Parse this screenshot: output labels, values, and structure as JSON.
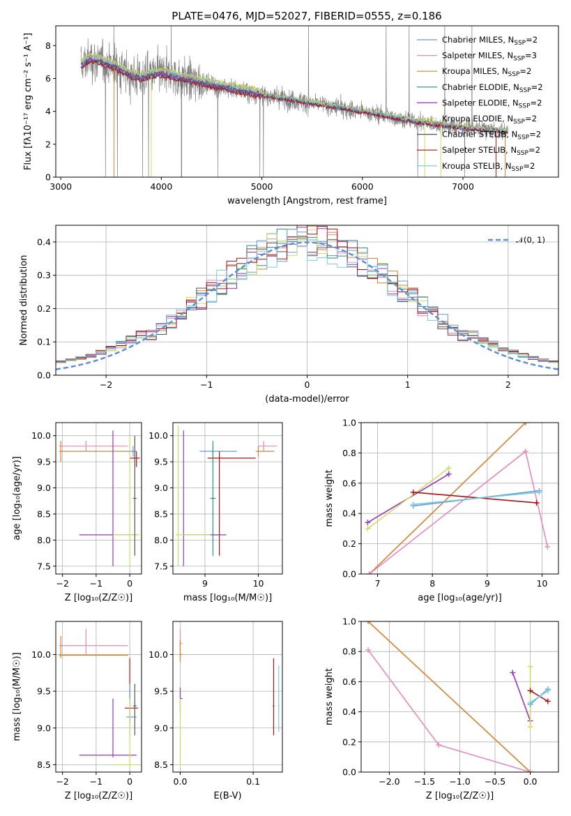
{
  "title": "PLATE=0476, MJD=52027, FIBERID=0555, z=0.186",
  "models": [
    {
      "name": "Chabrier MILES",
      "nssp": "2",
      "color": "#6699dd"
    },
    {
      "name": "Salpeter MILES",
      "nssp": "3",
      "color": "#e888bb"
    },
    {
      "name": "Kroupa MILES",
      "nssp": "2",
      "color": "#d98030"
    },
    {
      "name": "Chabrier ELODIE",
      "nssp": "2",
      "color": "#2b8a88"
    },
    {
      "name": "Salpeter ELODIE",
      "nssp": "2",
      "color": "#9933bb"
    },
    {
      "name": "Kroupa ELODIE",
      "nssp": "2",
      "color": "#c8e060"
    },
    {
      "name": "Chabrier STELIB",
      "nssp": "2",
      "color": "#555555"
    },
    {
      "name": "Salpeter STELIB",
      "nssp": "2",
      "color": "#aa1111"
    },
    {
      "name": "Kroupa STELIB",
      "nssp": "2",
      "color": "#77ccdd"
    }
  ],
  "chart_data": [
    {
      "id": "spectrum",
      "type": "line",
      "xlabel": "wavelength [Angstrom, rest frame]",
      "ylabel": "Flux [fλ10⁻¹⁷ erg cm⁻² s⁻¹ A⁻¹]",
      "xlim": [
        2950,
        7950
      ],
      "ylim": [
        0,
        9.2
      ],
      "xticks": [
        3000,
        4000,
        5000,
        6000,
        7000
      ],
      "yticks": [
        0,
        2,
        4,
        6,
        8
      ],
      "data_color": "#808080",
      "model_shape": {
        "x": [
          3200,
          3300,
          3400,
          3500,
          3600,
          3700,
          3800,
          3900,
          4000,
          4200,
          4500,
          5000,
          5500,
          6000,
          6500,
          7000,
          7400
        ],
        "y": [
          6.8,
          7.2,
          7.0,
          6.8,
          6.5,
          6.2,
          6.0,
          6.2,
          6.3,
          6.0,
          5.6,
          5.0,
          4.5,
          4.0,
          3.4,
          3.0,
          2.8
        ]
      }
    },
    {
      "id": "residuals",
      "type": "step",
      "xlabel": "(data-model)/error",
      "ylabel": "Normed distribution",
      "xlim": [
        -2.5,
        2.5
      ],
      "ylim": [
        0,
        0.45
      ],
      "xticks": [
        -2,
        -1,
        0,
        1,
        2
      ],
      "yticks": [
        0.0,
        0.1,
        0.2,
        0.3,
        0.4
      ],
      "legend": "𝒩(0, 1)",
      "gauss_color": "#5a8fd6"
    },
    {
      "id": "age_Z",
      "type": "errorbar",
      "xlabel": "Z [log₁₀(Z/Z☉)]",
      "ylabel": "age  [log₁₀(age/yr)]",
      "xlim": [
        -2.2,
        0.35
      ],
      "ylim": [
        7.35,
        10.25
      ],
      "xticks": [
        -2,
        -1,
        0
      ],
      "yticks": [
        7.5,
        8.0,
        8.5,
        9.0,
        9.5,
        10.0
      ],
      "points": [
        {
          "m": 1,
          "x": -1.3,
          "y": 9.8,
          "xe": [
            -2.1,
            -0.05
          ],
          "ye": [
            9.7,
            9.9
          ]
        },
        {
          "m": 2,
          "x": -2.05,
          "y": 9.7,
          "xe": [
            -2.1,
            0.1
          ],
          "ye": [
            9.5,
            9.9
          ]
        },
        {
          "m": 0,
          "x": 0.1,
          "y": 9.7,
          "xe": [
            -0.1,
            0.2
          ],
          "ye": [
            9.6,
            9.8
          ]
        },
        {
          "m": 7,
          "x": 0.2,
          "y": 9.57,
          "xe": [
            0.0,
            0.3
          ],
          "ye": [
            9.4,
            9.7
          ]
        },
        {
          "m": 4,
          "x": -0.5,
          "y": 8.1,
          "xe": [
            -1.5,
            0.2
          ],
          "ye": [
            7.5,
            10.1
          ]
        },
        {
          "m": 5,
          "x": 0.0,
          "y": 8.1,
          "xe": [
            -0.5,
            0.3
          ],
          "ye": [
            7.5,
            10.0
          ]
        },
        {
          "m": 6,
          "x": 0.15,
          "y": 8.8,
          "xe": [
            0.1,
            0.2
          ],
          "ye": [
            7.7,
            10.0
          ]
        }
      ]
    },
    {
      "id": "age_mass",
      "type": "errorbar",
      "xlabel": "mass [log₁₀(M/M☉)]",
      "ylabel": "",
      "xlim": [
        8.4,
        10.45
      ],
      "ylim": [
        7.35,
        10.25
      ],
      "xticks": [
        9,
        10
      ],
      "yticks": [
        7.5,
        8.0,
        8.5,
        9.0,
        9.5,
        10.0
      ],
      "points": [
        {
          "m": 1,
          "x": 10.1,
          "y": 9.8,
          "xe": [
            10.0,
            10.35
          ],
          "ye": [
            9.7,
            9.9
          ]
        },
        {
          "m": 2,
          "x": 10.0,
          "y": 9.7,
          "xe": [
            9.95,
            10.3
          ],
          "ye": [
            9.6,
            9.8
          ]
        },
        {
          "m": 0,
          "x": 9.15,
          "y": 9.7,
          "xe": [
            8.9,
            9.6
          ],
          "ye": [
            9.5,
            9.8
          ]
        },
        {
          "m": 7,
          "x": 9.27,
          "y": 9.57,
          "xe": [
            9.05,
            9.95
          ],
          "ye": [
            7.7,
            9.7
          ]
        },
        {
          "m": 4,
          "x": 8.6,
          "y": 8.1,
          "xe": [
            8.6,
            9.4
          ],
          "ye": [
            7.5,
            10.1
          ]
        },
        {
          "m": 5,
          "x": 8.5,
          "y": 8.1,
          "xe": [
            8.45,
            9.1
          ],
          "ye": [
            7.5,
            10.2
          ]
        },
        {
          "m": 3,
          "x": 9.15,
          "y": 8.8,
          "xe": [
            9.1,
            9.2
          ],
          "ye": [
            7.7,
            9.9
          ]
        }
      ]
    },
    {
      "id": "weight_age",
      "type": "line",
      "xlabel": "age  [log₁₀(age/yr)]",
      "ylabel": "mass weight",
      "xlim": [
        6.7,
        10.3
      ],
      "ylim": [
        0,
        1
      ],
      "xticks": [
        7,
        8,
        9,
        10
      ],
      "yticks": [
        0.0,
        0.2,
        0.4,
        0.6,
        0.8,
        1.0
      ],
      "series": [
        {
          "m": 2,
          "x": [
            6.85,
            9.7
          ],
          "y": [
            0.0,
            1.0
          ]
        },
        {
          "m": 1,
          "x": [
            6.85,
            9.7,
            10.1
          ],
          "y": [
            0.0,
            0.81,
            0.18
          ]
        },
        {
          "m": 4,
          "x": [
            6.82,
            8.3
          ],
          "y": [
            0.34,
            0.66
          ]
        },
        {
          "m": 5,
          "x": [
            6.82,
            8.3
          ],
          "y": [
            0.3,
            0.7
          ]
        },
        {
          "m": 7,
          "x": [
            7.65,
            9.9
          ],
          "y": [
            0.54,
            0.47
          ]
        },
        {
          "m": 0,
          "x": [
            7.65,
            9.95
          ],
          "y": [
            0.45,
            0.55
          ]
        },
        {
          "m": 8,
          "x": [
            7.65,
            9.95
          ],
          "y": [
            0.46,
            0.54
          ]
        }
      ]
    },
    {
      "id": "mass_Z",
      "type": "errorbar",
      "xlabel": "Z [log₁₀(Z/Z☉)]",
      "ylabel": "mass [log₁₀(M/M☉)]",
      "xlim": [
        -2.2,
        0.35
      ],
      "ylim": [
        8.4,
        10.45
      ],
      "xticks": [
        -2,
        -1,
        0
      ],
      "yticks": [
        8.5,
        9.0,
        9.5,
        10.0
      ],
      "points": [
        {
          "m": 1,
          "x": -1.3,
          "y": 10.12,
          "xe": [
            -2.1,
            -0.05
          ],
          "ye": [
            10.0,
            10.35
          ]
        },
        {
          "m": 2,
          "x": -2.05,
          "y": 9.99,
          "xe": [
            -2.1,
            -0.05
          ],
          "ye": [
            9.95,
            10.25
          ]
        },
        {
          "m": 7,
          "x": 0.0,
          "y": 9.27,
          "xe": [
            -0.15,
            0.25
          ],
          "ye": [
            9.05,
            9.95
          ]
        },
        {
          "m": 0,
          "x": 0.0,
          "y": 9.15,
          "xe": [
            -0.1,
            0.2
          ],
          "ye": [
            8.9,
            9.6
          ]
        },
        {
          "m": 4,
          "x": -0.5,
          "y": 8.63,
          "xe": [
            -1.5,
            0.2
          ],
          "ye": [
            8.6,
            9.4
          ]
        },
        {
          "m": 5,
          "x": 0.0,
          "y": 8.5,
          "xe": [
            -0.5,
            0.2
          ],
          "ye": [
            8.45,
            9.4
          ]
        },
        {
          "m": 6,
          "x": 0.15,
          "y": 9.3,
          "xe": [
            0.1,
            0.2
          ],
          "ye": [
            8.9,
            9.6
          ]
        }
      ]
    },
    {
      "id": "mass_EBV",
      "type": "errorbar",
      "xlabel": "E(B-V)",
      "ylabel": "",
      "xlim": [
        -0.01,
        0.14
      ],
      "ylim": [
        8.4,
        10.45
      ],
      "xticks": [
        0.0,
        0.1
      ],
      "yticks": [
        8.5,
        9.0,
        9.5,
        10.0
      ],
      "points": [
        {
          "m": 1,
          "x": 0.0,
          "y": 10.15,
          "xe": [
            0,
            0.003
          ],
          "ye": [
            9.95,
            10.35
          ]
        },
        {
          "m": 2,
          "x": 0.0,
          "y": 10.0,
          "xe": [
            0,
            0.003
          ],
          "ye": [
            9.9,
            10.2
          ]
        },
        {
          "m": 4,
          "x": 0.0,
          "y": 9.4,
          "xe": [
            0,
            0.003
          ],
          "ye": [
            9.2,
            9.55
          ]
        },
        {
          "m": 5,
          "x": 0.0,
          "y": 9.0,
          "xe": [
            0,
            0.003
          ],
          "ye": [
            8.45,
            9.4
          ]
        },
        {
          "m": 7,
          "x": 0.128,
          "y": 9.3,
          "xe": [
            0.127,
            0.129
          ],
          "ye": [
            8.9,
            9.95
          ]
        },
        {
          "m": 8,
          "x": 0.135,
          "y": 9.3,
          "xe": [
            0.134,
            0.136
          ],
          "ye": [
            8.95,
            9.85
          ]
        }
      ]
    },
    {
      "id": "weight_Z",
      "type": "line",
      "xlabel": "Z [log₁₀(Z/Z☉)]",
      "ylabel": "mass weight",
      "xlim": [
        -2.4,
        0.4
      ],
      "ylim": [
        0,
        1
      ],
      "xticks": [
        -2.0,
        -1.5,
        -1.0,
        -0.5,
        0.0
      ],
      "yticks": [
        0.0,
        0.2,
        0.4,
        0.6,
        0.8,
        1.0
      ],
      "series": [
        {
          "m": 2,
          "x": [
            -2.3,
            0.0
          ],
          "y": [
            1.0,
            0.0
          ]
        },
        {
          "m": 1,
          "x": [
            -2.3,
            -1.3,
            0.0
          ],
          "y": [
            0.81,
            0.18,
            0.0
          ]
        },
        {
          "m": 4,
          "x": [
            -0.25,
            0.0
          ],
          "y": [
            0.66,
            0.34
          ]
        },
        {
          "m": 5,
          "x": [
            0.0,
            0.0
          ],
          "y": [
            0.7,
            0.3
          ]
        },
        {
          "m": 7,
          "x": [
            0.0,
            0.25
          ],
          "y": [
            0.54,
            0.47
          ]
        },
        {
          "m": 0,
          "x": [
            0.0,
            0.25
          ],
          "y": [
            0.45,
            0.55
          ]
        },
        {
          "m": 8,
          "x": [
            0.0,
            0.25
          ],
          "y": [
            0.46,
            0.54
          ]
        }
      ]
    }
  ]
}
